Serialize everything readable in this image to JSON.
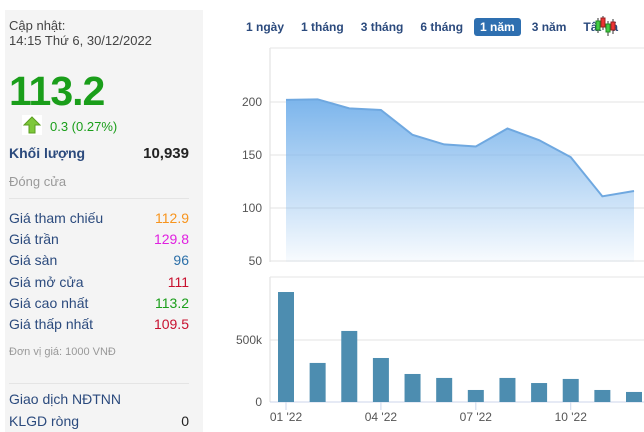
{
  "sidebar": {
    "updated_label": "Cập nhật:",
    "updated_time": "14:15 Thứ 6, 30/12/2022",
    "price": "113.2",
    "change": "0.3 (0.27%)",
    "volume_label": "Khối lượng",
    "volume": "10,939",
    "status": "Đóng cửa",
    "rows": [
      {
        "label": "Giá tham chiếu",
        "value": "112.9",
        "color": "#f7941d"
      },
      {
        "label": "Giá trần",
        "value": "129.8",
        "color": "#e020e0"
      },
      {
        "label": "Giá sàn",
        "value": "96",
        "color": "#2b6fa8"
      },
      {
        "label": "Giá mở cửa",
        "value": "111",
        "color": "#c8102e"
      },
      {
        "label": "Giá cao nhất",
        "value": "113.2",
        "color": "#1a9e1a"
      },
      {
        "label": "Giá thấp nhất",
        "value": "109.5",
        "color": "#c8102e"
      }
    ],
    "unit": "Đơn vị giá: 1000 VNĐ",
    "foreign_title": "Giao dịch NĐTNN",
    "net_label": "KLGD ròng",
    "net_value": "0"
  },
  "tabs": [
    {
      "label": "1 ngày",
      "active": false
    },
    {
      "label": "1 tháng",
      "active": false
    },
    {
      "label": "3 tháng",
      "active": false
    },
    {
      "label": "6 tháng",
      "active": false
    },
    {
      "label": "1 năm",
      "active": true
    },
    {
      "label": "3 năm",
      "active": false
    },
    {
      "label": "Tất cả",
      "active": false
    }
  ],
  "candlestick_icon": "candlestick-icon",
  "chart_data": [
    {
      "type": "area",
      "y_ticks": [
        "200",
        "150",
        "100",
        "50"
      ],
      "ylim": [
        50,
        250
      ],
      "values": [
        202,
        202.5,
        194,
        192.5,
        169,
        160,
        158,
        175,
        164,
        148,
        111,
        116
      ],
      "color": "#7cb5ec"
    },
    {
      "type": "bar",
      "y_ticks": [
        "500k",
        "0"
      ],
      "x_ticks": [
        "01 '22",
        "04 '22",
        "07 '22",
        "10 '22"
      ],
      "values": [
        887000,
        315000,
        573000,
        355000,
        226000,
        194000,
        97000,
        194000,
        153000,
        186000,
        97000,
        81000
      ],
      "color": "#4d8db0"
    }
  ]
}
